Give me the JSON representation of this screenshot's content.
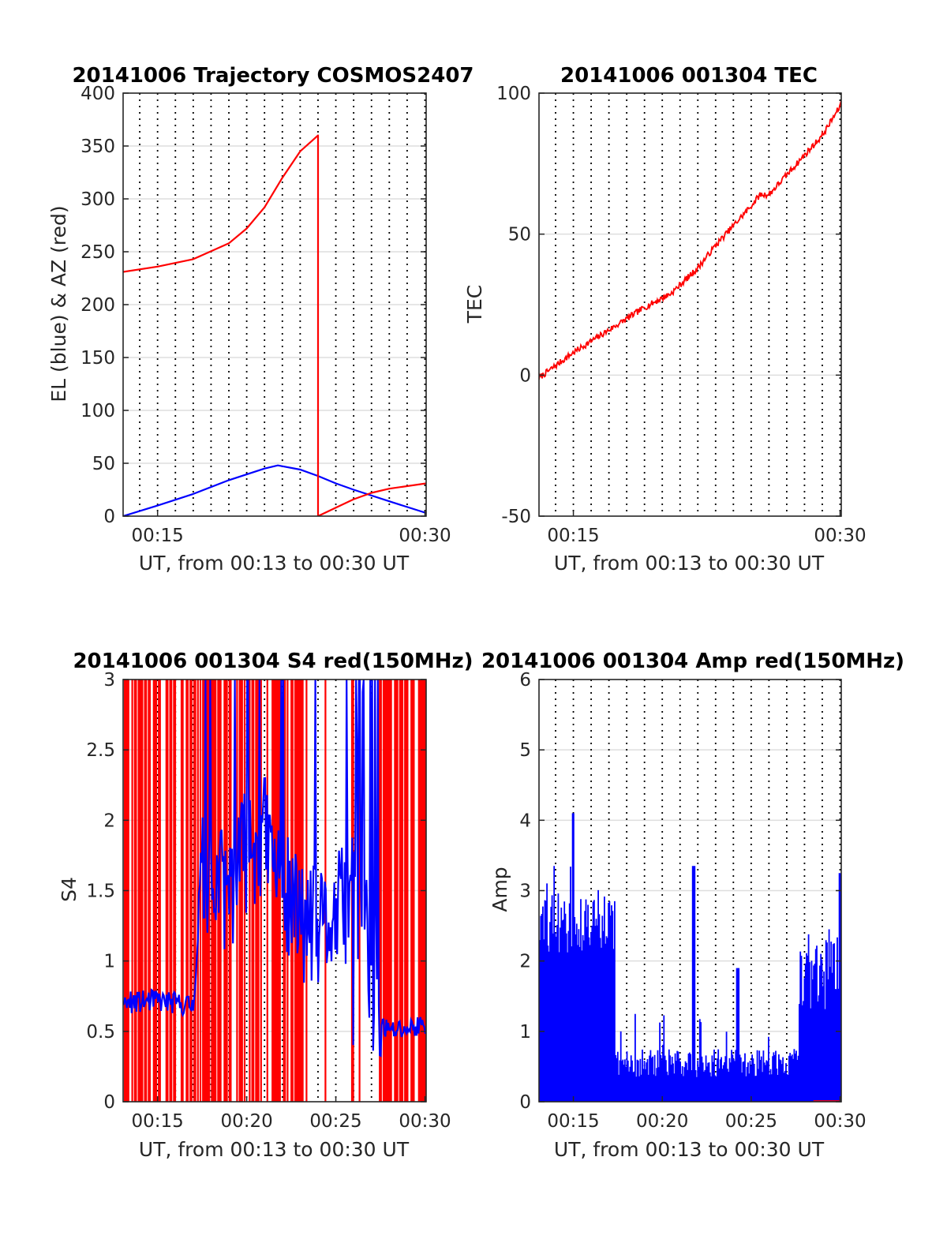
{
  "figure": {
    "date": "20141006",
    "colors": {
      "el_series": "#0000ff",
      "az_series": "#ff0000",
      "grid": "#dedede",
      "minute_markers": "#000000"
    },
    "minute_markers": [
      "00:14",
      "00:15",
      "00:16",
      "00:17",
      "00:18",
      "00:19",
      "00:20",
      "00:21",
      "00:22",
      "00:23",
      "00:24",
      "00:25",
      "00:26",
      "00:27",
      "00:28",
      "00:29",
      "00:30"
    ]
  },
  "chart_data": [
    {
      "id": "trajectory",
      "type": "line",
      "title": "20141006 Trajectory COSMOS2407",
      "xlabel": "UT, from 00:13 to 00:30 UT",
      "ylabel": "EL (blue) & AZ (red)",
      "xlim": [
        "00:13:04",
        "00:30:04"
      ],
      "ylim": [
        0,
        400
      ],
      "yticks": [
        0,
        50,
        100,
        150,
        200,
        250,
        300,
        350,
        400
      ],
      "xticks": [
        "00:15",
        "00:30"
      ],
      "grid": true,
      "series": [
        {
          "color": "#0000ff",
          "x": [
            "00:13:04",
            "00:15:00",
            "00:17:00",
            "00:19:00",
            "00:21:00",
            "00:21:45",
            "00:23:00",
            "00:24:00",
            "00:25:00",
            "00:26:00",
            "00:28:00",
            "00:30:04"
          ],
          "y": [
            0,
            10,
            21,
            34,
            45,
            48,
            44,
            38,
            31,
            25,
            14,
            3
          ]
        },
        {
          "color": "#ff0000",
          "x": [
            "00:13:04",
            "00:15:00",
            "00:17:00",
            "00:19:00",
            "00:20:00",
            "00:21:00",
            "00:22:00",
            "00:23:00",
            "00:24:00",
            "00:24:00",
            "00:25:00",
            "00:26:00",
            "00:27:00",
            "00:28:00",
            "00:30:04"
          ],
          "y": [
            231,
            236,
            243,
            258,
            272,
            292,
            320,
            345,
            360,
            0,
            8,
            16,
            22,
            26,
            31
          ]
        }
      ]
    },
    {
      "id": "tec",
      "type": "line",
      "title": "20141006 001304 TEC",
      "xlabel": "UT, from 00:13 to 00:30 UT",
      "ylabel": "TEC",
      "xlim": [
        "00:13:04",
        "00:30:04"
      ],
      "ylim": [
        -50,
        100
      ],
      "yticks": [
        -50,
        0,
        50,
        100
      ],
      "xticks": [
        "00:15",
        "00:30"
      ],
      "grid": true,
      "series": [
        {
          "color": "#ff0000",
          "x": [
            "00:13:04",
            "00:15:00",
            "00:17:00",
            "00:19:00",
            "00:20:30",
            "00:21:00",
            "00:22:00",
            "00:23:00",
            "00:24:00",
            "00:25:00",
            "00:25:30",
            "00:26:00",
            "00:27:00",
            "00:28:00",
            "00:29:00",
            "00:30:04"
          ],
          "y": [
            -1,
            8,
            16,
            24,
            29,
            32,
            38,
            46,
            53,
            60,
            64,
            64,
            71,
            78,
            85,
            96
          ]
        }
      ]
    },
    {
      "id": "s4",
      "type": "line",
      "title": "20141006 001304 S4 red(150MHz)",
      "xlabel": "UT, from 00:13 to 00:30 UT",
      "ylabel": "S4",
      "xlim": [
        "00:13:04",
        "00:30:04"
      ],
      "ylim": [
        0,
        3
      ],
      "yticks": [
        0,
        0.5,
        1,
        1.5,
        2,
        2.5,
        3
      ],
      "xticks": [
        "00:15",
        "00:20",
        "00:25",
        "00:30"
      ],
      "grid": true,
      "series": [
        {
          "color": "#ff0000",
          "x": [
            "00:13:04",
            "00:30:04"
          ],
          "y": [
            0,
            3
          ]
        },
        {
          "color": "#0000ff",
          "x": [
            "00:13:04",
            "00:15:00",
            "00:17:00",
            "00:17:30",
            "00:18:00",
            "00:19:00",
            "00:20:00",
            "00:21:00",
            "00:22:00",
            "00:23:00",
            "00:24:00",
            "00:25:00",
            "00:26:00",
            "00:27:00",
            "00:27:30",
            "00:28:00",
            "00:29:00",
            "00:30:04"
          ],
          "y": [
            0.7,
            0.72,
            0.68,
            1.6,
            1.55,
            1.5,
            1.8,
            1.9,
            1.5,
            1.3,
            1.2,
            1.3,
            1.5,
            1.1,
            0.55,
            0.5,
            0.52,
            0.55
          ]
        }
      ]
    },
    {
      "id": "amp",
      "type": "line",
      "title": "20141006 001304 Amp red(150MHz)",
      "xlabel": "UT, from 00:13 to 00:30 UT",
      "ylabel": "Amp",
      "xlim": [
        "00:13:04",
        "00:30:04"
      ],
      "ylim": [
        0,
        6
      ],
      "yticks": [
        0,
        1,
        2,
        3,
        4,
        5,
        6
      ],
      "xticks": [
        "00:15",
        "00:20",
        "00:25",
        "00:30"
      ],
      "grid": true,
      "series": [
        {
          "color": "#0000ff",
          "x": [
            "00:13:04",
            "00:15:00",
            "00:17:00",
            "00:17:20",
            "00:19:00",
            "00:21:00",
            "00:21:45",
            "00:23:00",
            "00:24:00",
            "00:25:00",
            "00:26:00",
            "00:27:00",
            "00:27:30",
            "00:28:00",
            "00:29:00",
            "00:30:04"
          ],
          "y": [
            2.8,
            2.9,
            3.0,
            0.8,
            0.7,
            0.6,
            3.3,
            0.6,
            1.9,
            0.5,
            1.2,
            0.5,
            0.4,
            2.4,
            2.8,
            3.2
          ]
        }
      ]
    }
  ]
}
